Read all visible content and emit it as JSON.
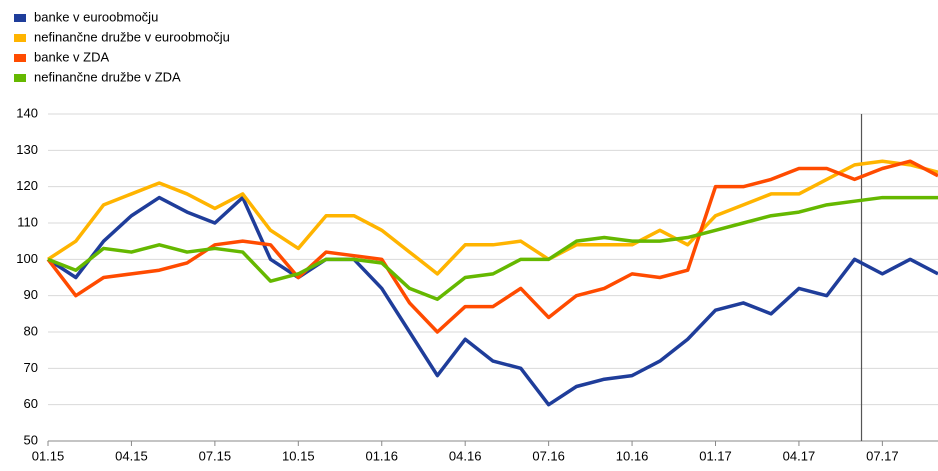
{
  "chart_data": {
    "type": "line",
    "x": [
      0,
      1,
      2,
      3,
      4,
      5,
      6,
      7,
      8,
      9,
      10,
      11,
      12,
      13,
      14,
      15,
      16,
      17,
      18,
      19,
      20,
      21,
      22,
      23,
      24,
      25,
      26,
      27,
      28,
      29,
      30,
      31,
      32
    ],
    "xlim": [
      0,
      32
    ],
    "xticks": [
      {
        "value": 0,
        "label": "01.15"
      },
      {
        "value": 3,
        "label": "04.15"
      },
      {
        "value": 6,
        "label": "07.15"
      },
      {
        "value": 9,
        "label": "10.15"
      },
      {
        "value": 12,
        "label": "01.16"
      },
      {
        "value": 15,
        "label": "04.16"
      },
      {
        "value": 18,
        "label": "07.16"
      },
      {
        "value": 21,
        "label": "10.16"
      },
      {
        "value": 24,
        "label": "01.17"
      },
      {
        "value": 27,
        "label": "04.17"
      },
      {
        "value": 30,
        "label": "07.17"
      }
    ],
    "ylim": [
      50,
      140
    ],
    "yticks": [
      50,
      60,
      70,
      80,
      90,
      100,
      110,
      120,
      130,
      140
    ],
    "grid": true,
    "vline": 29.25,
    "series": [
      {
        "name": "banke v euroobmočju",
        "color": "#1f3d9a",
        "values": [
          100,
          95,
          105,
          112,
          117,
          113,
          110,
          117,
          100,
          95,
          100,
          100,
          92,
          80,
          68,
          78,
          72,
          70,
          60,
          65,
          67,
          68,
          72,
          78,
          86,
          88,
          85,
          92,
          90,
          100,
          96,
          100,
          96
        ]
      },
      {
        "name": "nefinančne družbe v euroobmočju",
        "color": "#ffb400",
        "values": [
          100,
          105,
          115,
          118,
          121,
          118,
          114,
          118,
          108,
          103,
          112,
          112,
          108,
          102,
          96,
          104,
          104,
          105,
          100,
          104,
          104,
          104,
          108,
          104,
          112,
          115,
          118,
          118,
          122,
          126,
          127,
          126,
          124
        ]
      },
      {
        "name": "banke v ZDA",
        "color": "#ff4b00",
        "values": [
          100,
          90,
          95,
          96,
          97,
          99,
          104,
          105,
          104,
          95,
          102,
          101,
          100,
          88,
          80,
          87,
          87,
          92,
          84,
          90,
          92,
          96,
          95,
          97,
          120,
          120,
          122,
          125,
          125,
          122,
          125,
          127,
          123
        ]
      },
      {
        "name": "nefinančne družbe v ZDA",
        "color": "#65b800",
        "values": [
          100,
          97,
          103,
          102,
          104,
          102,
          103,
          102,
          94,
          96,
          100,
          100,
          99,
          92,
          89,
          95,
          96,
          100,
          100,
          105,
          106,
          105,
          105,
          106,
          108,
          110,
          112,
          113,
          115,
          116,
          117,
          117,
          117
        ]
      }
    ]
  }
}
